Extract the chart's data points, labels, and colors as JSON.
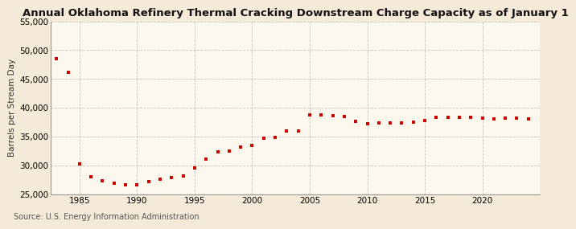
{
  "title": "Annual Oklahoma Refinery Thermal Cracking Downstream Charge Capacity as of January 1",
  "ylabel": "Barrels per Stream Day",
  "source": "Source: U.S. Energy Information Administration",
  "background_color": "#f5ead8",
  "plot_background_color": "#fdf8ee",
  "dot_color": "#cc0000",
  "grid_color": "#bbbbbb",
  "years": [
    1983,
    1984,
    1985,
    1986,
    1987,
    1988,
    1989,
    1990,
    1991,
    1992,
    1993,
    1994,
    1995,
    1996,
    1997,
    1998,
    1999,
    2000,
    2001,
    2002,
    2003,
    2004,
    2005,
    2006,
    2007,
    2008,
    2009,
    2010,
    2011,
    2012,
    2013,
    2014,
    2015,
    2016,
    2017,
    2018,
    2019,
    2020,
    2021,
    2022,
    2023,
    2024
  ],
  "values": [
    48500,
    46200,
    30300,
    28000,
    27300,
    26900,
    26600,
    26600,
    27100,
    27600,
    27900,
    28100,
    29500,
    31100,
    32300,
    32500,
    33200,
    33400,
    34700,
    34900,
    36000,
    36000,
    38700,
    38700,
    38600,
    38500,
    37600,
    37200,
    37300,
    37300,
    37300,
    37500,
    37800,
    38300,
    38300,
    38300,
    38300,
    38200,
    38100,
    38200,
    38200,
    38100
  ],
  "ylim": [
    25000,
    55000
  ],
  "yticks": [
    25000,
    30000,
    35000,
    40000,
    45000,
    50000,
    55000
  ],
  "xlim": [
    1982.5,
    2025
  ],
  "xticks": [
    1985,
    1990,
    1995,
    2000,
    2005,
    2010,
    2015,
    2020
  ],
  "title_fontsize": 9.5,
  "label_fontsize": 7.5,
  "tick_fontsize": 7.5,
  "source_fontsize": 7
}
